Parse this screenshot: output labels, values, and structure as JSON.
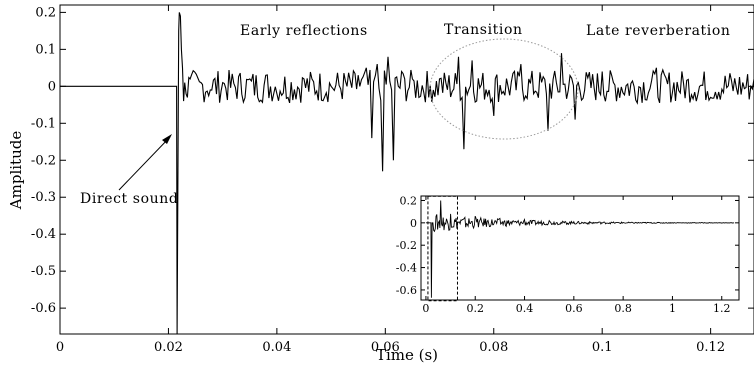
{
  "chart_data": [
    {
      "type": "line",
      "title": "",
      "xlabel": "Time (s)",
      "ylabel": "Amplitude",
      "xlim": [
        0,
        0.128
      ],
      "ylim": [
        -0.67,
        0.22
      ],
      "xticks": [
        "0",
        "0.02",
        "0.04",
        "0.06",
        "0.08",
        "0.1",
        "0.12"
      ],
      "xtick_values": [
        0,
        0.02,
        0.04,
        0.06,
        0.08,
        0.1,
        0.12
      ],
      "yticks": [
        "0.2",
        "0.1",
        "0",
        "-0.1",
        "-0.2",
        "-0.3",
        "-0.4",
        "-0.5",
        "-0.6"
      ],
      "ytick_values": [
        0.2,
        0.1,
        0,
        -0.1,
        -0.2,
        -0.3,
        -0.4,
        -0.5,
        -0.6
      ],
      "grid": false,
      "line_color": "#000000",
      "series": [
        {
          "x": [
            0,
            0.0215,
            0.0216,
            0.0218,
            0.0219,
            0.022,
            0.0222,
            0.0224,
            0.0226,
            0.0228,
            0.023,
            0.0235,
            0.024,
            0.026,
            0.028,
            0.03,
            0.035,
            0.04,
            0.045,
            0.05,
            0.055,
            0.0565,
            0.0575,
            0.0585,
            0.0595,
            0.0605,
            0.0615,
            0.063,
            0.065,
            0.068,
            0.07,
            0.0735,
            0.0745,
            0.076,
            0.08,
            0.085,
            0.09,
            0.0925,
            0.095,
            0.1,
            0.11,
            0.12,
            0.128
          ],
          "y": [
            0,
            0,
            -0.67,
            -0.1,
            0.15,
            0.2,
            0.19,
            0.1,
            0.05,
            -0.04,
            0.01,
            -0.03,
            0.02,
            0.01,
            -0.01,
            0.01,
            0.02,
            -0.02,
            0.02,
            0.0,
            0.03,
            0.05,
            -0.14,
            0.06,
            -0.23,
            0.08,
            -0.2,
            0.04,
            0.02,
            -0.03,
            0.02,
            0.08,
            -0.17,
            0.07,
            -0.08,
            0.06,
            -0.12,
            0.09,
            -0.09,
            0.04,
            0.05,
            -0.03,
            0.02
          ]
        }
      ],
      "annotations": {
        "direct_sound": "Direct sound",
        "early": "Early reflections",
        "transition": "Transition",
        "late": "Late reverberation"
      }
    },
    {
      "type": "line",
      "title": "",
      "xlabel": "",
      "ylabel": "",
      "xlim": [
        -0.02,
        1.27
      ],
      "ylim": [
        -0.69,
        0.24
      ],
      "xticks": [
        "0",
        "0.2",
        "0.4",
        "0.6",
        "0.8",
        "1",
        "1.2"
      ],
      "xtick_values": [
        0,
        0.2,
        0.4,
        0.6,
        0.8,
        1.0,
        1.2
      ],
      "yticks": [
        "0.2",
        "0",
        "-0.2",
        "-0.4",
        "-0.6"
      ],
      "ytick_values": [
        0.2,
        0,
        -0.2,
        -0.4,
        -0.6
      ],
      "grid": false,
      "series": [
        {
          "x": [
            0,
            0.02,
            0.022,
            0.06,
            0.1,
            0.2,
            0.3,
            0.4,
            0.5,
            0.6,
            0.7,
            0.8,
            1.0,
            1.25
          ],
          "y": [
            0,
            0,
            -0.67,
            0.2,
            0.08,
            0.06,
            0.04,
            0.03,
            0.02,
            0.01,
            0.006,
            0.003,
            0.001,
            0
          ]
        }
      ],
      "highlight_box": {
        "x": [
          0,
          0.128
        ],
        "y": [
          -0.67,
          0.22
        ]
      }
    }
  ]
}
